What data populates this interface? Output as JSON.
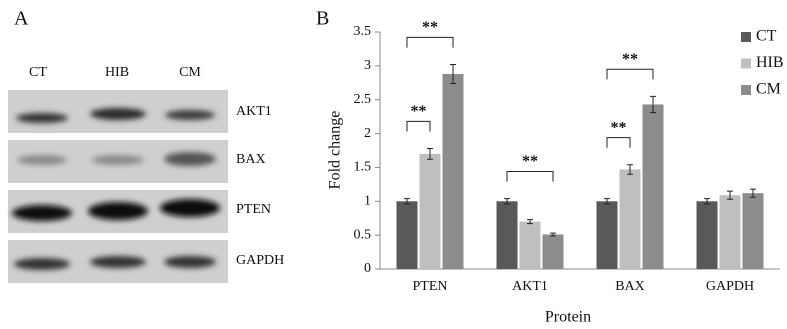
{
  "panel_a": {
    "label": "A",
    "lanes": [
      "CT",
      "HIB",
      "CM"
    ],
    "proteins": [
      "AKT1",
      "BAX",
      "PTEN",
      "GAPDH"
    ]
  },
  "chart_data": {
    "type": "bar",
    "panel_label": "B",
    "xlabel": "Protein",
    "ylabel": "Fold change",
    "categories": [
      "PTEN",
      "AKT1",
      "BAX",
      "GAPDH"
    ],
    "series": [
      {
        "name": "CT",
        "color": "#595959",
        "values": [
          1.0,
          1.0,
          1.0,
          1.0
        ],
        "errors": [
          0.04,
          0.04,
          0.04,
          0.04
        ]
      },
      {
        "name": "HIB",
        "color": "#bfbfbf",
        "values": [
          1.7,
          0.7,
          1.47,
          1.09
        ],
        "errors": [
          0.08,
          0.03,
          0.07,
          0.06
        ]
      },
      {
        "name": "CM",
        "color": "#8c8c8c",
        "values": [
          2.88,
          0.51,
          2.43,
          1.12
        ],
        "errors": [
          0.14,
          0.02,
          0.12,
          0.06
        ]
      }
    ],
    "ylim": [
      0,
      3.5
    ],
    "yticks": [
      0,
      0.5,
      1,
      1.5,
      2,
      2.5,
      3,
      3.5
    ],
    "grid": false,
    "legend": "top-right",
    "annotations": [
      {
        "text": "**",
        "category": 0,
        "from": 0,
        "to": 1
      },
      {
        "text": "**",
        "category": 0,
        "from": 0,
        "to": 2
      },
      {
        "text": "**",
        "category": 1,
        "from": 0,
        "to": 2
      },
      {
        "text": "**",
        "category": 2,
        "from": 0,
        "to": 1
      },
      {
        "text": "**",
        "category": 2,
        "from": 0,
        "to": 2
      }
    ]
  }
}
